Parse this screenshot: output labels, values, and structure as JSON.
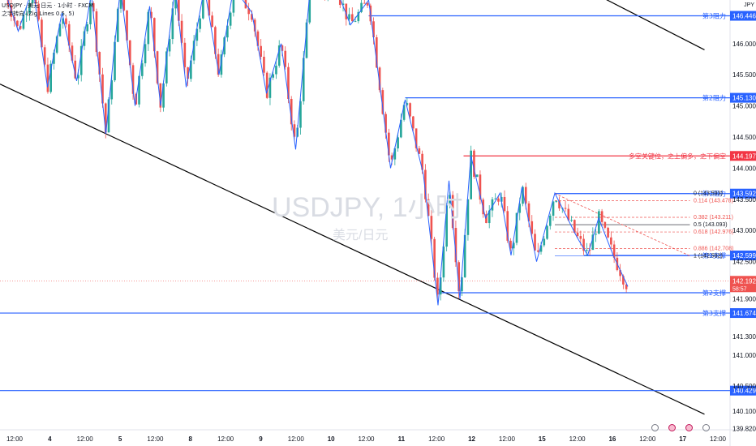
{
  "header": {
    "line1": "USDJPY · 美元 日元 · 1小时 · FXCM",
    "line2": "之字转向 (Zig Lines 0.5, 5)"
  },
  "currency_label": "JPY",
  "watermark": {
    "title": "USDJPY, 1小时",
    "subtitle": "美元/日元"
  },
  "colors": {
    "up": "#26a69a",
    "down": "#ef5350",
    "zigzag": "#2962ff",
    "resistance": "#2962ff",
    "pivot": "#f23645",
    "trend": "#000000"
  },
  "chart_data": {
    "type": "candlestick",
    "symbol": "USDJPY",
    "timeframe": "1小时",
    "ylim": [
      139.8,
      146.7
    ],
    "y_ticks": [
      "146.000",
      "145.500",
      "145.000",
      "144.500",
      "144.000",
      "143.500",
      "143.000",
      "142.500",
      "141.900",
      "141.300",
      "141.000",
      "140.500",
      "140.100",
      "139.820"
    ],
    "x_ticks": [
      "12:00",
      "4",
      "12:00",
      "5",
      "12:00",
      "8",
      "12:00",
      "9",
      "12:00",
      "10",
      "12:00",
      "11",
      "12:00",
      "12",
      "12:00",
      "15",
      "12:00",
      "16",
      "12:00",
      "17",
      "12:00"
    ],
    "current_price": {
      "value": "142.192",
      "countdown": "58:57"
    },
    "levels": [
      {
        "label": "第3阻力",
        "price": 146.446,
        "price_label": "146.446",
        "kind": "resistance",
        "from_x": 0.505
      },
      {
        "label": "第2阻力",
        "price": 145.13,
        "price_label": "145.130",
        "kind": "resistance",
        "from_x": 0.555
      },
      {
        "label": "多空关键位，之上偏多，之下偏空",
        "price": 144.197,
        "price_label": "144.197",
        "kind": "pivot",
        "from_x": 0.635
      },
      {
        "label": "第1阻力",
        "price": 143.592,
        "price_label": "143.592",
        "kind": "resistance",
        "from_x": 0.76
      },
      {
        "label": "第1支撑",
        "price": 142.599,
        "price_label": "142.599",
        "kind": "support",
        "from_x": 0.8
      },
      {
        "label": "第2支撑",
        "price": 142.0,
        "price_label": "",
        "kind": "support",
        "from_x": 0.605
      },
      {
        "label": "第3支撑",
        "price": 141.674,
        "price_label": "141.674",
        "kind": "support",
        "from_x": 0.0
      },
      {
        "label": "",
        "price": 140.429,
        "price_label": "140.429",
        "kind": "support",
        "from_x": 0.0
      }
    ],
    "fibonacci": [
      {
        "ratio": "0",
        "label": "0 (143.593)",
        "price": 143.593
      },
      {
        "ratio": "0.114",
        "label": "0.114 (143.478)",
        "price": 143.478
      },
      {
        "ratio": "0.382",
        "label": "0.382 (143.211)",
        "price": 143.211
      },
      {
        "ratio": "0.5",
        "label": "0.5 (143.093)",
        "price": 143.093
      },
      {
        "ratio": "0.618",
        "label": "0.618 (142.976)",
        "price": 142.976
      },
      {
        "ratio": "0.886",
        "label": "0.886 (142.708)",
        "price": 142.708
      },
      {
        "ratio": "1",
        "label": "1 (142.592)",
        "price": 142.592
      }
    ],
    "trendlines": [
      {
        "points": [
          [
            0.0,
            145.35
          ],
          [
            0.965,
            140.05
          ]
        ]
      },
      {
        "points": [
          [
            0.765,
            147.1
          ],
          [
            0.965,
            145.9
          ]
        ]
      }
    ],
    "zigzag": [
      [
        0.005,
        146.9
      ],
      [
        0.025,
        146.2
      ],
      [
        0.045,
        146.9
      ],
      [
        0.065,
        145.3
      ],
      [
        0.085,
        146.5
      ],
      [
        0.105,
        145.4
      ],
      [
        0.125,
        146.8
      ],
      [
        0.145,
        144.55
      ],
      [
        0.165,
        146.9
      ],
      [
        0.185,
        145.0
      ],
      [
        0.205,
        146.6
      ],
      [
        0.22,
        145.0
      ],
      [
        0.24,
        146.9
      ],
      [
        0.255,
        145.3
      ],
      [
        0.28,
        146.9
      ],
      [
        0.3,
        145.5
      ],
      [
        0.32,
        146.9
      ],
      [
        0.345,
        146.5
      ],
      [
        0.365,
        145.2
      ],
      [
        0.385,
        146.0
      ],
      [
        0.405,
        144.3
      ],
      [
        0.425,
        146.9
      ],
      [
        0.445,
        146.8
      ],
      [
        0.46,
        146.9
      ],
      [
        0.48,
        146.3
      ],
      [
        0.505,
        146.7
      ],
      [
        0.535,
        144.0
      ],
      [
        0.555,
        145.1
      ],
      [
        0.58,
        143.9
      ],
      [
        0.6,
        141.8
      ],
      [
        0.615,
        143.8
      ],
      [
        0.63,
        141.9
      ],
      [
        0.645,
        144.2
      ],
      [
        0.665,
        143.2
      ],
      [
        0.685,
        143.6
      ],
      [
        0.7,
        142.6
      ],
      [
        0.715,
        143.7
      ],
      [
        0.735,
        142.5
      ],
      [
        0.76,
        143.6
      ],
      [
        0.79,
        142.9
      ],
      [
        0.805,
        142.6
      ],
      [
        0.82,
        143.2
      ],
      [
        0.84,
        142.6
      ],
      [
        0.86,
        142.1
      ]
    ],
    "candles": []
  }
}
